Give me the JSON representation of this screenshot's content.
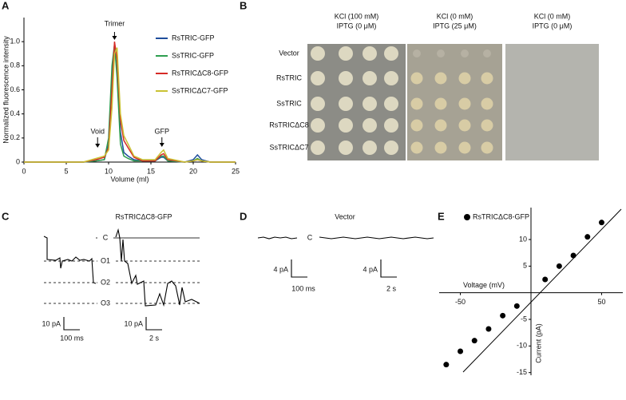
{
  "chart_data": [
    {
      "panel": "A",
      "type": "line",
      "xlabel": "Volume (ml)",
      "ylabel": "Normalized fluorescence intensity",
      "annotations": [
        "Trimer",
        "Void",
        "GFP"
      ],
      "x": [
        0,
        7,
        8.5,
        9.5,
        10,
        10.4,
        10.7,
        11,
        11.4,
        11.8,
        12.3,
        13,
        14,
        15.5,
        16.2,
        16.5,
        17,
        19,
        20,
        20.5,
        21,
        22,
        25
      ],
      "xlim": [
        0,
        25
      ],
      "xticks": [
        0,
        5,
        10,
        15,
        20,
        25
      ],
      "ylim": [
        0,
        1.2
      ],
      "yticks": [
        0,
        0.2,
        0.4,
        0.6,
        0.8,
        {
          "value": 1,
          "label": "1.0"
        }
      ],
      "series": [
        {
          "name": "RsTRIC-GFP",
          "color": "#1f4e9c",
          "values": [
            0,
            0,
            0.01,
            0.02,
            0.15,
            0.7,
            0.97,
            0.75,
            0.25,
            0.08,
            0.05,
            0.02,
            0.01,
            0.01,
            0.04,
            0.04,
            0.01,
            0,
            0.02,
            0.06,
            0.02,
            0,
            0
          ]
        },
        {
          "name": "SsTRIC-GFP",
          "color": "#2e9e4f",
          "values": [
            0,
            0,
            0.01,
            0.02,
            0.2,
            0.8,
            0.98,
            0.7,
            0.15,
            0.05,
            0.03,
            0.01,
            0.01,
            0.01,
            0.05,
            0.05,
            0.01,
            0,
            0.01,
            0.03,
            0.01,
            0,
            0
          ]
        },
        {
          "name": "RsTRICΔC8-GFP",
          "color": "#d62a26",
          "values": [
            0,
            0,
            0.02,
            0.04,
            0.12,
            0.6,
            1.0,
            0.85,
            0.35,
            0.18,
            0.12,
            0.04,
            0.01,
            0.01,
            0.06,
            0.07,
            0.02,
            0,
            0.01,
            0.02,
            0.01,
            0,
            0
          ]
        },
        {
          "name": "SsTRICΔC7-GFP",
          "color": "#c9c234",
          "values": [
            0,
            0,
            0.03,
            0.05,
            0.1,
            0.45,
            0.9,
            0.95,
            0.4,
            0.22,
            0.15,
            0.05,
            0.02,
            0.02,
            0.08,
            0.1,
            0.03,
            0,
            0.01,
            0.02,
            0.01,
            0,
            0
          ]
        }
      ]
    },
    {
      "panel": "E",
      "type": "scatter",
      "xlabel": "Voltage (mV)",
      "ylabel": "Current (pA)",
      "xlim": [
        -65,
        65
      ],
      "xticks": [
        -50,
        50
      ],
      "ylim": [
        -15.5,
        16
      ],
      "yticks": [
        -15,
        -10,
        -5,
        5,
        10
      ],
      "series": [
        {
          "name": "RsTRICΔC8-GFP",
          "color": "#000000",
          "x": [
            -60,
            -50,
            -40,
            -30,
            -20,
            -10,
            10,
            20,
            30,
            40,
            50
          ],
          "values": [
            -13.5,
            -11,
            -9,
            -6.8,
            -4.3,
            -2.5,
            2.5,
            5,
            7,
            10.5,
            13.2
          ]
        }
      ]
    }
  ],
  "panel_b": {
    "panel": "B",
    "columns": [
      [
        "KCl (100 mM)",
        "IPTG (0 μM)"
      ],
      [
        "KCl (0 mM)",
        "IPTG (25 μM)"
      ],
      [
        "KCl (0 mM)",
        "IPTG (0 μM)"
      ]
    ],
    "rows": [
      "Vector",
      "RsTRIC",
      "SsTRIC",
      "RsTRICΔC8",
      "SsTRICΔC7"
    ]
  },
  "panel_c": {
    "panel": "C",
    "title": "RsTRICΔC8-GFP",
    "levels": [
      "C",
      "O1",
      "O2",
      "O3"
    ],
    "scale_bars": [
      "10 pA",
      "100 ms",
      "10 pA",
      "2 s"
    ]
  },
  "panel_d": {
    "panel": "D",
    "title": "Vector",
    "levels": [
      "C"
    ],
    "scale_bars": [
      "4 pA",
      "100 ms",
      "4 pA",
      "2 s"
    ]
  }
}
